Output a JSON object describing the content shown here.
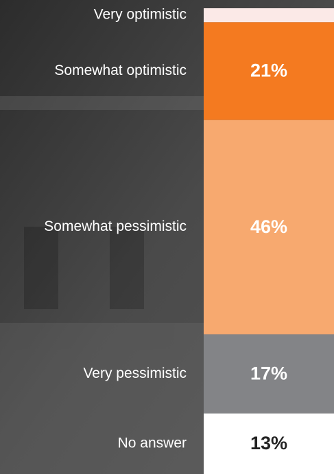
{
  "chart_data": {
    "type": "stacked-bar",
    "categories": [
      "Very optimistic",
      "Somewhat optimistic",
      "Somewhat pessimistic",
      "Very pessimistic",
      "No answer"
    ],
    "values": [
      3,
      21,
      46,
      17,
      13
    ],
    "value_labels": [
      null,
      "21%",
      "46%",
      "17%",
      "13%"
    ],
    "colors": [
      "#fbe9e7",
      "#f47a20",
      "#f7a96f",
      "#838487",
      "#ffffff"
    ],
    "ylim": [
      0,
      100
    ]
  }
}
